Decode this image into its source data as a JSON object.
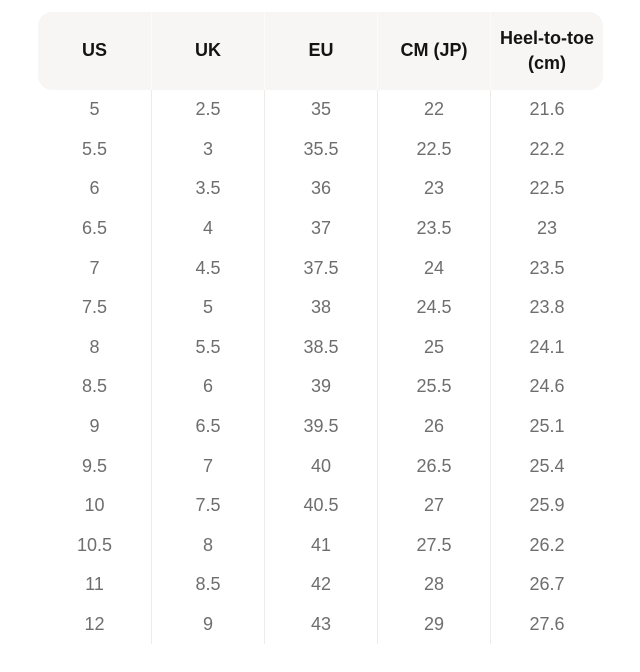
{
  "colors": {
    "page_bg": "#ffffff",
    "header_bg": "#f7f6f5",
    "header_text": "#141414",
    "body_text": "#6e6e6e",
    "body_divider": "#edecea",
    "header_divider": "#fcfbfb"
  },
  "chart_data": {
    "type": "table",
    "columns": [
      "US",
      "UK",
      "EU",
      "CM (JP)",
      "Heel-to-toe (cm)"
    ],
    "rows": [
      [
        "5",
        "2.5",
        "35",
        "22",
        "21.6"
      ],
      [
        "5.5",
        "3",
        "35.5",
        "22.5",
        "22.2"
      ],
      [
        "6",
        "3.5",
        "36",
        "23",
        "22.5"
      ],
      [
        "6.5",
        "4",
        "37",
        "23.5",
        "23"
      ],
      [
        "7",
        "4.5",
        "37.5",
        "24",
        "23.5"
      ],
      [
        "7.5",
        "5",
        "38",
        "24.5",
        "23.8"
      ],
      [
        "8",
        "5.5",
        "38.5",
        "25",
        "24.1"
      ],
      [
        "8.5",
        "6",
        "39",
        "25.5",
        "24.6"
      ],
      [
        "9",
        "6.5",
        "39.5",
        "26",
        "25.1"
      ],
      [
        "9.5",
        "7",
        "40",
        "26.5",
        "25.4"
      ],
      [
        "10",
        "7.5",
        "40.5",
        "27",
        "25.9"
      ],
      [
        "10.5",
        "8",
        "41",
        "27.5",
        "26.2"
      ],
      [
        "11",
        "8.5",
        "42",
        "28",
        "26.7"
      ],
      [
        "12",
        "9",
        "43",
        "29",
        "27.6"
      ]
    ]
  }
}
